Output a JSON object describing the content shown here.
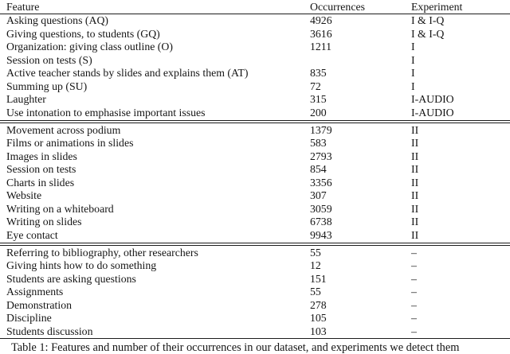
{
  "table": {
    "columns": [
      "Feature",
      "Occurrences",
      "Experiment"
    ],
    "sections": [
      {
        "rows": [
          {
            "feature": "Asking questions (AQ)",
            "occurrences": "4926",
            "experiment": "I & I-Q"
          },
          {
            "feature": "Giving questions, to students (GQ)",
            "occurrences": "3616",
            "experiment": "I & I-Q"
          },
          {
            "feature": "Organization: giving class outline (O)",
            "occurrences": "1211",
            "experiment": "I"
          },
          {
            "feature": "Session on tests (S)",
            "occurrences": "",
            "experiment": "I"
          },
          {
            "feature": "Active teacher stands by slides and explains them (AT)",
            "occurrences": "835",
            "experiment": "I"
          },
          {
            "feature": "Summing up (SU)",
            "occurrences": "72",
            "experiment": "I"
          },
          {
            "feature": "Laughter",
            "occurrences": "315",
            "experiment": "I-AUDIO"
          },
          {
            "feature": "Use intonation to emphasise important issues",
            "occurrences": "200",
            "experiment": "I-AUDIO"
          }
        ]
      },
      {
        "rows": [
          {
            "feature": "Movement across podium",
            "occurrences": "1379",
            "experiment": "II"
          },
          {
            "feature": "Films or animations in slides",
            "occurrences": "583",
            "experiment": "II"
          },
          {
            "feature": "Images in slides",
            "occurrences": "2793",
            "experiment": "II"
          },
          {
            "feature": "Session on tests",
            "occurrences": "854",
            "experiment": "II"
          },
          {
            "feature": "Charts in slides",
            "occurrences": "3356",
            "experiment": "II"
          },
          {
            "feature": "Website",
            "occurrences": "307",
            "experiment": "II"
          },
          {
            "feature": "Writing on a whiteboard",
            "occurrences": "3059",
            "experiment": "II"
          },
          {
            "feature": "Writing on slides",
            "occurrences": "6738",
            "experiment": "II"
          },
          {
            "feature": "Eye contact",
            "occurrences": "9943",
            "experiment": "II"
          }
        ]
      },
      {
        "rows": [
          {
            "feature": "Referring to bibliography, other researchers",
            "occurrences": "55",
            "experiment": "–"
          },
          {
            "feature": "Giving hints how to do something",
            "occurrences": "12",
            "experiment": "–"
          },
          {
            "feature": "Students are asking questions",
            "occurrences": "151",
            "experiment": "–"
          },
          {
            "feature": "Assignments",
            "occurrences": "55",
            "experiment": "–"
          },
          {
            "feature": "Demonstration",
            "occurrences": "278",
            "experiment": "–"
          },
          {
            "feature": "Discipline",
            "occurrences": "105",
            "experiment": "–"
          },
          {
            "feature": "Students discussion",
            "occurrences": "103",
            "experiment": "–"
          }
        ]
      }
    ],
    "caption": "Table 1: Features and number of their occurrences in our dataset, and experiments we detect them"
  }
}
